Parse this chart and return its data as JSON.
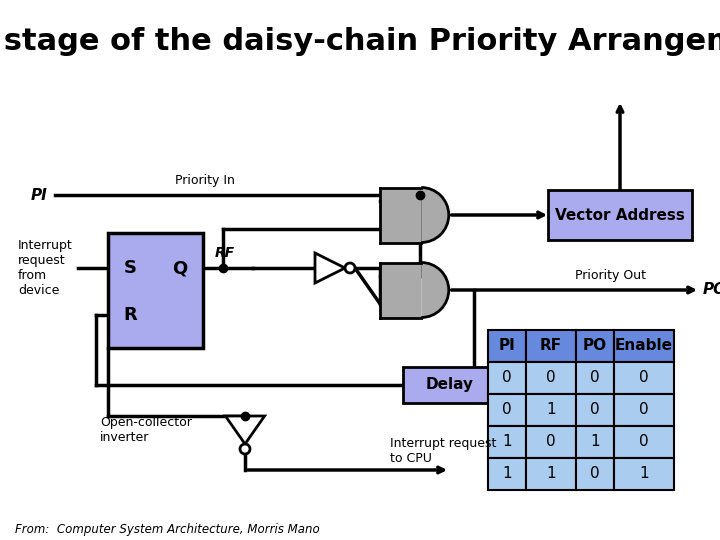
{
  "title": "One stage of the daisy-chain Priority Arrangement",
  "background_color": "#ffffff",
  "title_fontsize": 22,
  "title_fontweight": "bold",
  "flip_flop_color": "#aaaaee",
  "gate_color": "#aaaaaa",
  "vector_addr_color": "#aaaaee",
  "delay_color": "#aaaaee",
  "table_header_color": "#6688dd",
  "table_row_color": "#aaccee",
  "table_data": [
    [
      "PI",
      "RF",
      "PO",
      "Enable"
    ],
    [
      "0",
      "0",
      "0",
      "0"
    ],
    [
      "0",
      "1",
      "0",
      "0"
    ],
    [
      "1",
      "0",
      "1",
      "0"
    ],
    [
      "1",
      "1",
      "0",
      "1"
    ]
  ],
  "footer_text": "From:  Computer System Architecture, Morris Mano"
}
